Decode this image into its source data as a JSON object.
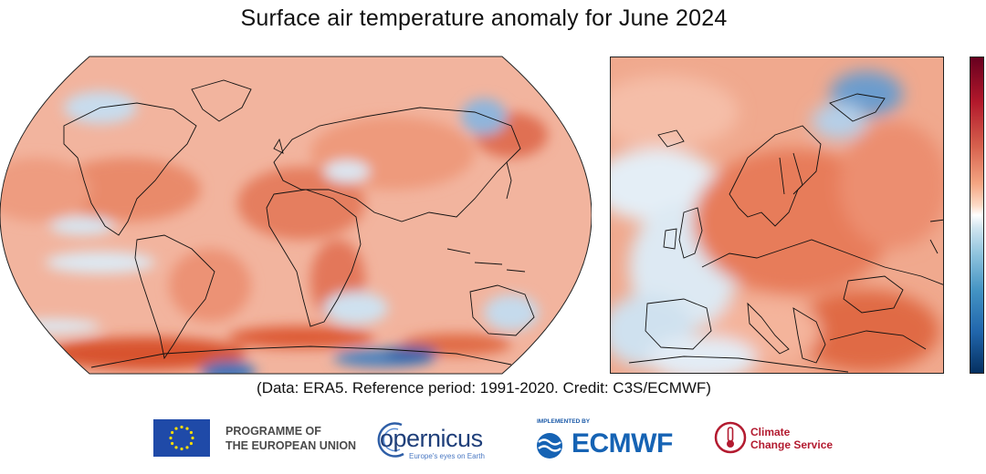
{
  "title": "Surface air temperature anomaly for June 2024",
  "credit": "(Data: ERA5.  Reference period: 1991-2020.  Credit: C3S/ECMWF)",
  "colors": {
    "warm": "#e8836a",
    "warm_strong": "#d9532f",
    "cool": "#b9d3ea",
    "cool_strong": "#3c74b8",
    "coast": "#111111"
  },
  "colorbar": {
    "orientation": "vertical",
    "scale": "diverging red-white-blue",
    "tick_labels": []
  },
  "maps": [
    {
      "name": "world",
      "projection": "Robinson"
    },
    {
      "name": "europe",
      "projection": "regional"
    }
  ],
  "logos": {
    "eu_programme": "PROGRAMME OF\nTHE EUROPEAN UNION",
    "copernicus": "opernicus",
    "copernicus_tagline": "Europe's eyes on Earth",
    "ecmwf_implemented": "IMPLEMENTED BY",
    "ecmwf": "ECMWF",
    "ccs": "Climate\nChange Service"
  }
}
